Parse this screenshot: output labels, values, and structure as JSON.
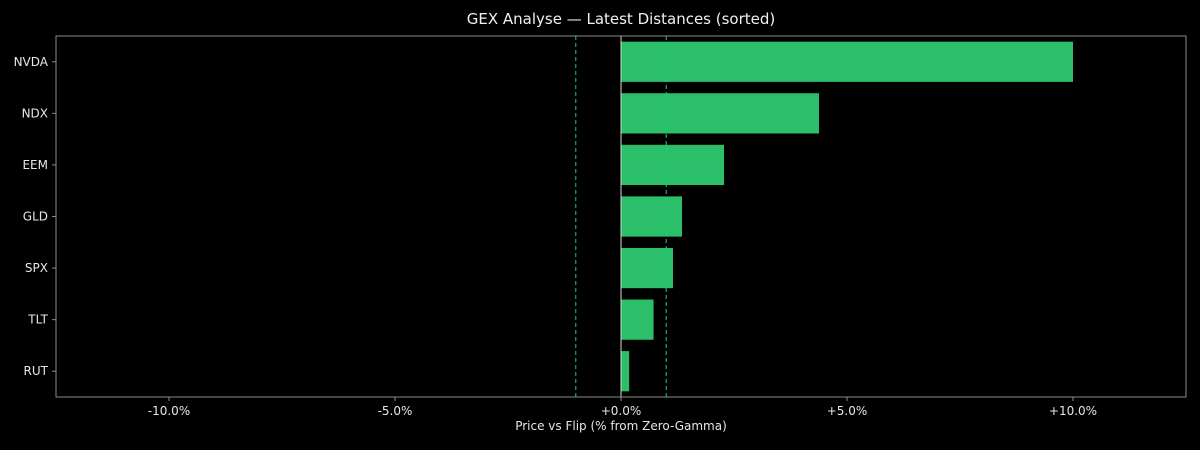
{
  "chart_data": {
    "type": "bar",
    "orientation": "horizontal",
    "title": "GEX Analyse — Latest Distances (sorted)",
    "xlabel": "Price vs Flip (% from Zero-Gamma)",
    "ylabel": "",
    "xlim": [
      -12.5,
      12.5
    ],
    "x_ticks": [
      -10,
      -5,
      0,
      5,
      10
    ],
    "x_tick_labels": [
      "-10.0%",
      "-5.0%",
      "+0.0%",
      "+5.0%",
      "+10.0%"
    ],
    "categories": [
      "NVDA",
      "NDX",
      "EEM",
      "GLD",
      "SPX",
      "TLT",
      "RUT"
    ],
    "values": [
      10.0,
      4.38,
      2.28,
      1.35,
      1.15,
      0.72,
      0.18
    ],
    "reference_lines": [
      {
        "x": 0,
        "style": "solid"
      },
      {
        "x": -1,
        "style": "dashed"
      },
      {
        "x": 1,
        "style": "dashed"
      }
    ],
    "grid": false,
    "legend": "none",
    "colors": {
      "background": "#000000",
      "bar": "#2bbf6a",
      "axis": "#8c8c8c",
      "text": "#e6e6e6",
      "zero_line": "#d9d9d9",
      "threshold_line": "#1fcf7a"
    }
  }
}
